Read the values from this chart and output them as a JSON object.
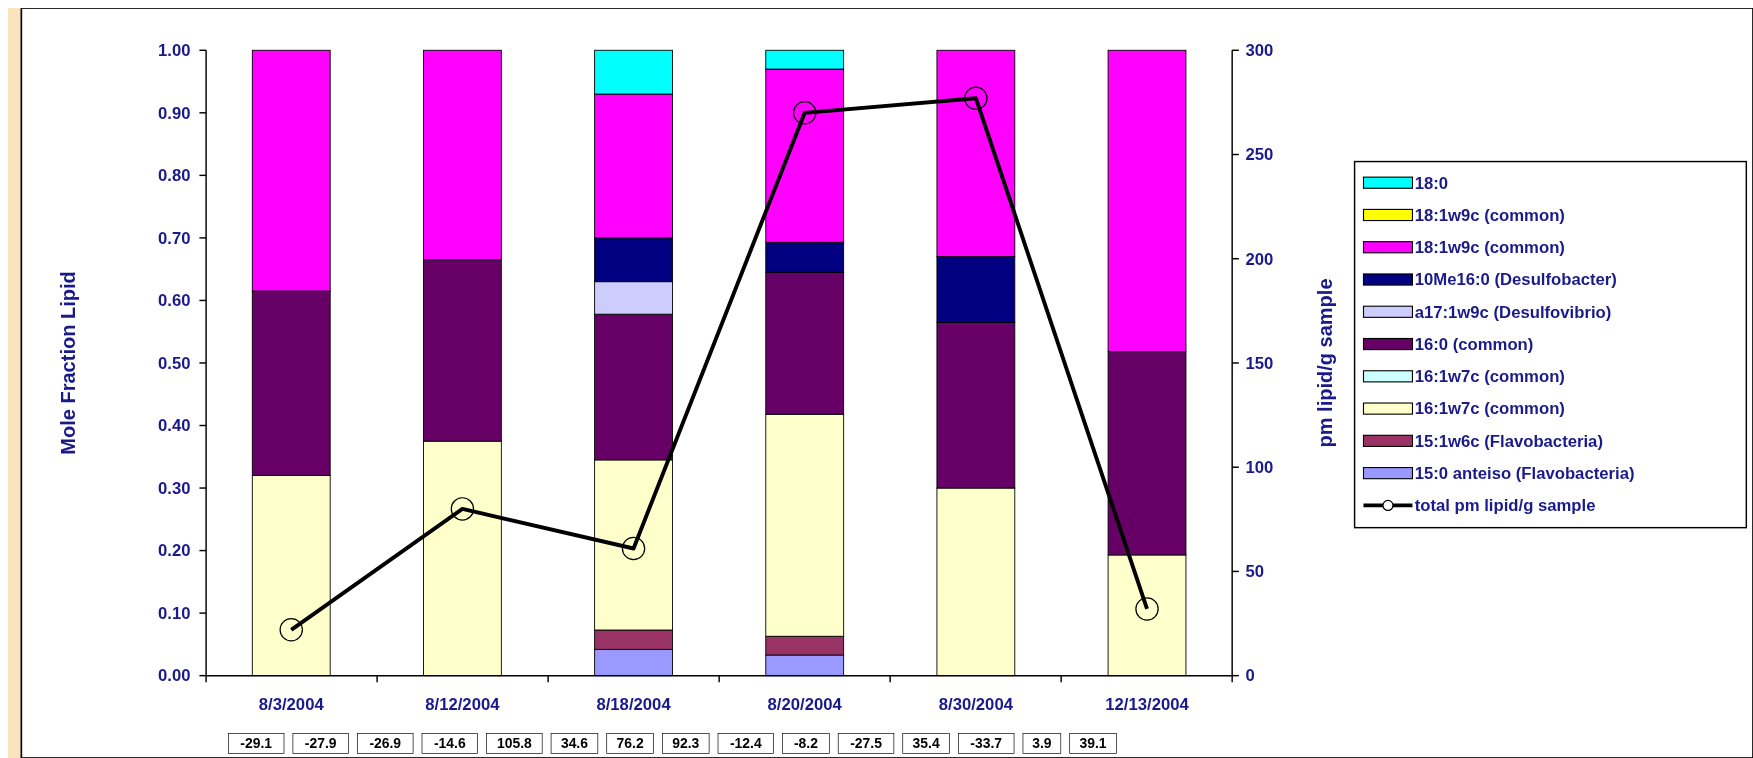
{
  "chart_data": {
    "type": "bar",
    "stacked": true,
    "categories": [
      "8/3/2004",
      "8/12/2004",
      "8/18/2004",
      "8/20/2004",
      "8/30/2004",
      "12/13/2004"
    ],
    "ylabel": "Mole Fraction Lipid",
    "y2label": "pm lipid/g sample",
    "ylim": [
      0,
      1
    ],
    "yticks": [
      {
        "value": 0,
        "label": "0.00"
      },
      {
        "value": 0.1,
        "label": "0.10"
      },
      {
        "value": 0.2,
        "label": "0.20"
      },
      {
        "value": 0.3,
        "label": "0.30"
      },
      {
        "value": 0.4,
        "label": "0.40"
      },
      {
        "value": 0.5,
        "label": "0.50"
      },
      {
        "value": 0.6,
        "label": "0.60"
      },
      {
        "value": 0.7,
        "label": "0.70"
      },
      {
        "value": 0.8,
        "label": "0.80"
      },
      {
        "value": 0.9,
        "label": "0.90"
      },
      {
        "value": 1,
        "label": "1.00"
      }
    ],
    "y2lim": [
      0,
      300
    ],
    "y2ticks": [
      0,
      50,
      100,
      150,
      200,
      250,
      300
    ],
    "legend": "right",
    "grid": false,
    "series": [
      {
        "name": "15:0 anteiso (Flavobacteria)",
        "color": "#9999ff",
        "values": [
          0,
          0,
          0.042,
          0.033,
          0,
          0
        ]
      },
      {
        "name": "15:1w6c (Flavobacteria)",
        "color": "#993366",
        "values": [
          0,
          0,
          0.031,
          0.03,
          0,
          0
        ]
      },
      {
        "name": "16:1w7c (common)",
        "color": "#ffffcc",
        "values": [
          0.32,
          0.375,
          0.272,
          0.355,
          0.3,
          0.193
        ]
      },
      {
        "name": "16:1w7c (common)",
        "color": "#ccffff",
        "values": [
          0,
          0,
          0,
          0,
          0,
          0
        ]
      },
      {
        "name": "16:0 (common)",
        "color": "#660066",
        "values": [
          0.295,
          0.29,
          0.233,
          0.227,
          0.265,
          0.325
        ]
      },
      {
        "name": "a17:1w9c (Desulfovibrio)",
        "color": "#ccccff",
        "values": [
          0,
          0,
          0.052,
          0,
          0,
          0
        ]
      },
      {
        "name": "10Me16:0 (Desulfobacter)",
        "color": "#000080",
        "values": [
          0,
          0,
          0.07,
          0.048,
          0.105,
          0
        ]
      },
      {
        "name": "18:1w9c (common)",
        "color": "#ff00ff",
        "values": [
          0.385,
          0.335,
          0.23,
          0.277,
          0.33,
          0.482
        ]
      },
      {
        "name": "18:1w9c (common)",
        "color": "#ffff00",
        "values": [
          0,
          0,
          0,
          0,
          0,
          0
        ]
      },
      {
        "name": "18:0",
        "color": "#00ffff",
        "values": [
          0,
          0,
          0.07,
          0.03,
          0,
          0
        ]
      },
      {
        "name": "total pm lipid/g sample",
        "type": "line",
        "axis": "y2",
        "color": "#000000",
        "marker": "circle",
        "values": [
          22,
          80,
          61,
          270,
          277,
          32
        ]
      }
    ],
    "annotations": [
      "-29.1",
      "-27.9",
      "-26.9",
      "-14.6",
      "105.8",
      "34.6",
      "76.2",
      "92.3",
      "-12.4",
      "-8.2",
      "-27.5",
      "35.4",
      "-33.7",
      "3.9",
      "39.1"
    ]
  }
}
